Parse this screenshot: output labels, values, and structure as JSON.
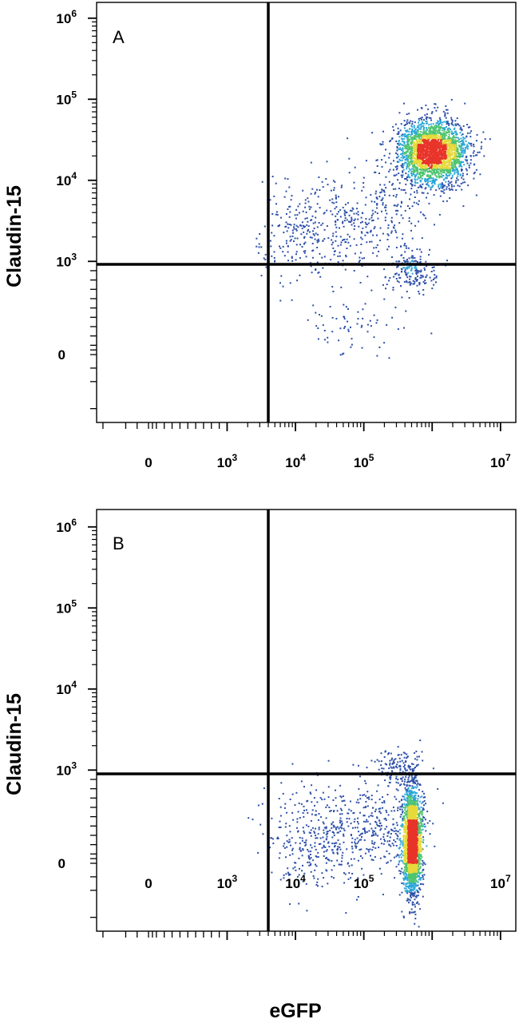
{
  "chart_data": [
    {
      "type": "scatter",
      "panel": "A",
      "xlabel": "",
      "ylabel": "Claudin-15",
      "x_scale": "biexponential",
      "y_scale": "biexponential",
      "x_ticks": [
        {
          "value": 0,
          "base": "0",
          "exp": ""
        },
        {
          "value": 1000,
          "base": "10",
          "exp": "3"
        },
        {
          "value": 10000,
          "base": "10",
          "exp": "4"
        },
        {
          "value": 100000,
          "base": "10",
          "exp": "5"
        },
        {
          "value": 10000000,
          "base": "10",
          "exp": "7"
        }
      ],
      "y_ticks": [
        {
          "value": 0,
          "base": "0",
          "exp": ""
        },
        {
          "value": 1000,
          "base": "10",
          "exp": "3"
        },
        {
          "value": 10000,
          "base": "10",
          "exp": "4"
        },
        {
          "value": 100000,
          "base": "10",
          "exp": "5"
        },
        {
          "value": 1000000,
          "base": "10",
          "exp": "6"
        }
      ],
      "quadrant_gate": {
        "x": 3000,
        "y": 800
      },
      "populations": [
        {
          "center_x": 1000000,
          "center_y": 22000,
          "spread_x_decades": 0.45,
          "spread_y_decades": 0.35,
          "events": 2600,
          "role": "main"
        },
        {
          "center_x": 50000,
          "center_y": 3000,
          "spread_x_decades": 0.8,
          "spread_y_decades": 0.45,
          "events": 550,
          "role": "smear"
        },
        {
          "center_x": 500000,
          "center_y": 900,
          "spread_x_decades": 0.3,
          "spread_y_decades": 0.25,
          "events": 180,
          "role": "low"
        },
        {
          "center_x": 80000,
          "center_y": 300,
          "spread_x_decades": 0.7,
          "spread_y_decades": 0.4,
          "events": 70,
          "role": "sparse"
        }
      ],
      "grid": false,
      "legend": false
    },
    {
      "type": "scatter",
      "panel": "B",
      "xlabel": "eGFP",
      "ylabel": "Claudin-15",
      "x_scale": "biexponential",
      "y_scale": "biexponential",
      "x_ticks": [
        {
          "value": 0,
          "base": "0",
          "exp": ""
        },
        {
          "value": 1000,
          "base": "10",
          "exp": "3"
        },
        {
          "value": 10000,
          "base": "10",
          "exp": "4"
        },
        {
          "value": 100000,
          "base": "10",
          "exp": "5"
        },
        {
          "value": 10000000,
          "base": "10",
          "exp": "7"
        }
      ],
      "y_ticks": [
        {
          "value": 0,
          "base": "0",
          "exp": ""
        },
        {
          "value": 1000,
          "base": "10",
          "exp": "3"
        },
        {
          "value": 10000,
          "base": "10",
          "exp": "4"
        },
        {
          "value": 100000,
          "base": "10",
          "exp": "5"
        },
        {
          "value": 1000000,
          "base": "10",
          "exp": "6"
        }
      ],
      "quadrant_gate": {
        "x": 3000,
        "y": 800
      },
      "populations": [
        {
          "center_x": 500000,
          "center_y": 250,
          "spread_x_decades": 0.12,
          "spread_y_decades": 0.6,
          "events": 2300,
          "role": "main"
        },
        {
          "center_x": 60000,
          "center_y": 350,
          "spread_x_decades": 0.75,
          "spread_y_decades": 0.45,
          "events": 700,
          "role": "smear"
        },
        {
          "center_x": 300000,
          "center_y": 1100,
          "spread_x_decades": 0.3,
          "spread_y_decades": 0.2,
          "events": 120,
          "role": "upper"
        }
      ],
      "grid": false,
      "legend": false
    }
  ],
  "colors": {
    "density_low": "#2c4fa8",
    "density_mid_low": "#2ba7d8",
    "density_mid": "#4fc46f",
    "density_mid_high": "#e6d93a",
    "density_high": "#e8342a",
    "axis": "#000000"
  }
}
